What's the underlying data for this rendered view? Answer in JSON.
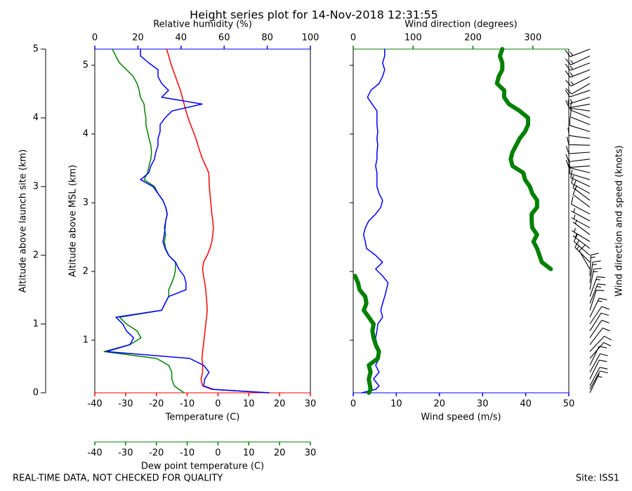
{
  "title": "Height series plot for 14-Nov-2018 12:31:55",
  "footer_left": "REAL-TIME DATA, NOT CHECKED FOR QUALITY",
  "footer_right": "Site: ISS1",
  "chart_data": [
    {
      "type": "line",
      "y": [
        0,
        0.05,
        0.1,
        0.2,
        0.3,
        0.4,
        0.5,
        0.6,
        0.7,
        0.8,
        0.9,
        1.0,
        1.1,
        1.2,
        1.3,
        1.4,
        1.5,
        1.6,
        1.7,
        1.8,
        1.9,
        2.0,
        2.1,
        2.2,
        2.3,
        2.4,
        2.5,
        2.6,
        2.7,
        2.8,
        2.9,
        3.0,
        3.1,
        3.2,
        3.3,
        3.4,
        3.5,
        3.6,
        3.7,
        3.8,
        3.9,
        4.0,
        4.1,
        4.2,
        4.3,
        4.4,
        4.5,
        4.6,
        4.7,
        4.8,
        4.9,
        5.0
      ],
      "ylim": [
        0,
        5
      ],
      "yticks": [
        0,
        1,
        2,
        3,
        4,
        5
      ],
      "ylabel": "Altitude above launch site (km)",
      "y2lim": [
        0.235,
        5.235
      ],
      "y2ticks": [
        1,
        2,
        3,
        4,
        5
      ],
      "y2label": "Altitude above MSL (km)",
      "xlim": [
        -40,
        30
      ],
      "xticks": [
        -40,
        -30,
        -20,
        -10,
        0,
        10,
        20,
        30
      ],
      "xlabel": "Temperature (C)",
      "xcolor": "#ff0000",
      "x2lim": [
        0,
        100
      ],
      "x2ticks": [
        0,
        20,
        40,
        60,
        80,
        100
      ],
      "x2label": "Relative humidity (%)",
      "x2color": "#0000ff",
      "x3lim": [
        -40,
        30
      ],
      "x3ticks": [
        -40,
        -30,
        -20,
        -10,
        0,
        10,
        20,
        30
      ],
      "x3label": "Dew point temperature (C)",
      "x3color": "#008000",
      "series": [
        {
          "axis": "x",
          "color": "#ff0000",
          "values": [
            16.5,
            -2,
            -5,
            -5.5,
            -5,
            -5,
            -5.2,
            -5,
            -4.7,
            -4.5,
            -4.2,
            -4,
            -3.7,
            -3.5,
            -3.6,
            -3.8,
            -4,
            -4.3,
            -4.7,
            -5,
            -4.7,
            -3.5,
            -2.6,
            -2,
            -1.7,
            -1.5,
            -1.7,
            -2,
            -2.2,
            -2.4,
            -2.6,
            -2.8,
            -2.9,
            -3,
            -4,
            -5,
            -5.8,
            -6.5,
            -7.2,
            -8,
            -8.9,
            -9.7,
            -10.4,
            -11,
            -11.6,
            -12.2,
            -13,
            -13.8,
            -14.6,
            -15.4,
            -16,
            -16.7
          ]
        },
        {
          "axis": "x3",
          "color": "#008000",
          "values": [
            -11,
            -12.6,
            -14.2,
            -15,
            -15,
            -16,
            -20,
            -37,
            -28.6,
            -25,
            -26.3,
            -29.7,
            -32,
            -18.3,
            -17.2,
            -16,
            -16,
            -15,
            -14.2,
            -13.8,
            -13.8,
            -16,
            -17,
            -17.4,
            -17,
            -17.4,
            -17,
            -16.5,
            -17,
            -17.9,
            -19.5,
            -20.6,
            -24,
            -22.9,
            -22.4,
            -21.8,
            -21.6,
            -21.8,
            -22.4,
            -22.9,
            -23.4,
            -23.4,
            -23.8,
            -24,
            -25.2,
            -25.6,
            -26.3,
            -27.5,
            -29.7,
            -32,
            -33.2,
            -34.3
          ]
        },
        {
          "axis": "x2",
          "color": "#0000ff",
          "values": [
            80.8,
            55,
            50.5,
            51,
            53,
            50.5,
            44,
            5.5,
            16.3,
            18,
            14.7,
            13,
            9.8,
            31,
            32.6,
            34.2,
            42.3,
            42.3,
            41.4,
            39,
            37.5,
            34.2,
            32.6,
            31.6,
            32.2,
            32.6,
            32.9,
            33.6,
            32.9,
            31.6,
            29.3,
            27,
            21.2,
            25,
            26,
            27.7,
            28.3,
            29.3,
            29.3,
            30.3,
            30.3,
            32.6,
            35.8,
            49.8,
            31,
            34.2,
            31,
            29.3,
            29.3,
            25,
            21.2,
            21.2
          ]
        }
      ]
    },
    {
      "type": "line",
      "y": [
        0,
        0.05,
        0.1,
        0.2,
        0.3,
        0.4,
        0.5,
        0.6,
        0.7,
        0.8,
        0.9,
        1.0,
        1.1,
        1.2,
        1.3,
        1.4,
        1.5,
        1.6,
        1.7,
        1.8,
        1.9,
        2.0,
        2.1,
        2.2,
        2.3,
        2.4,
        2.5,
        2.6,
        2.7,
        2.8,
        2.9,
        3.0,
        3.1,
        3.2,
        3.3,
        3.4,
        3.5,
        3.6,
        3.7,
        3.8,
        3.9,
        4.0,
        4.1,
        4.2,
        4.3,
        4.4,
        4.5,
        4.6,
        4.7,
        4.8,
        4.9,
        5.0
      ],
      "ylim": [
        0,
        5
      ],
      "y2lim": [
        0.235,
        5.235
      ],
      "y2ticks": [
        1,
        2,
        3,
        4,
        5
      ],
      "xlim": [
        0,
        50
      ],
      "xticks": [
        0,
        10,
        20,
        30,
        40,
        50
      ],
      "xlabel": "Wind speed (m/s)",
      "xcolor": "#0000ff",
      "x2lim": [
        0,
        360
      ],
      "x2ticks": [
        0,
        100,
        200,
        300
      ],
      "x2label": "Wind direction (degrees)",
      "x2color": "#008000",
      "series": [
        {
          "axis": "x",
          "color": "#0000ff",
          "width": 1.5,
          "values": [
            2,
            5.2,
            6,
            4.7,
            6,
            5.2,
            6,
            6,
            5.5,
            5.2,
            5.5,
            5.7,
            6.8,
            6.4,
            6.8,
            7.3,
            7.7,
            8.1,
            6.8,
            5.2,
            6.8,
            5.2,
            3.1,
            2.8,
            2.4,
            2.8,
            3.6,
            5.2,
            6.4,
            6.8,
            6,
            5.5,
            5.5,
            5.5,
            5.2,
            5.5,
            5.5,
            5.7,
            5.5,
            5.7,
            5.5,
            5.5,
            5.5,
            4.4,
            3.3,
            4.1,
            6,
            6.8,
            7.3,
            6.8,
            7.3,
            7.3
          ]
        },
        {
          "axis": "x2",
          "color": "#008000",
          "width": 6,
          "values": [
            26,
            29,
            28,
            26,
            29,
            26,
            41,
            43,
            37.5,
            34,
            32,
            34,
            26,
            17.6,
            22,
            20,
            10.5,
            8,
            3,
            330,
            315,
            311,
            307,
            301,
            307,
            299,
            298,
            298,
            307,
            307,
            299,
            295,
            287,
            284,
            266,
            263,
            266,
            272,
            278,
            287,
            292,
            292,
            278,
            260,
            252,
            252,
            240,
            243,
            249,
            249,
            245,
            249
          ]
        }
      ],
      "barbs_label": "Wind direction and speed (knots)"
    }
  ]
}
